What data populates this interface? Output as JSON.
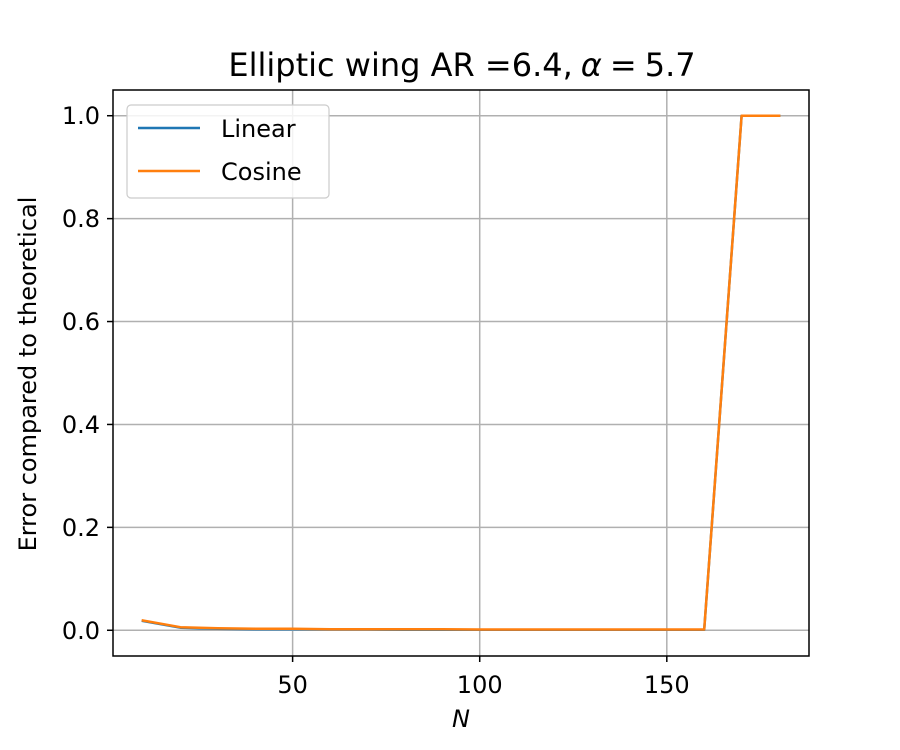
{
  "chart_data": {
    "type": "line",
    "title": "Elliptic wing AR =6.4, α = 5.7",
    "title_parts": {
      "prefix": "Elliptic wing AR =6.4,",
      "alpha": "α",
      "eq": "=",
      "alpha_value": "5.7"
    },
    "xlabel": "N",
    "ylabel": "Error compared to theoretical",
    "xlim": [
      2,
      188
    ],
    "ylim": [
      -0.05,
      1.05
    ],
    "xticks": [
      50,
      100,
      150
    ],
    "xtick_labels": [
      "50",
      "100",
      "150"
    ],
    "yticks": [
      0.0,
      0.2,
      0.4,
      0.6,
      0.8,
      1.0
    ],
    "ytick_labels": [
      "0.0",
      "0.2",
      "0.4",
      "0.6",
      "0.8",
      "1.0"
    ],
    "grid": true,
    "legend_position": "top-left",
    "x": [
      10,
      20,
      30,
      40,
      50,
      60,
      70,
      80,
      90,
      100,
      110,
      120,
      130,
      140,
      150,
      160,
      170,
      180
    ],
    "series": [
      {
        "name": "Linear",
        "color": "#1f77b4",
        "values": [
          0.018,
          0.005,
          0.003,
          0.002,
          0.002,
          0.0015,
          0.0015,
          0.0012,
          0.0012,
          0.001,
          0.001,
          0.001,
          0.001,
          0.001,
          0.001,
          0.001,
          1.0,
          1.0
        ]
      },
      {
        "name": "Cosine",
        "color": "#ff7f0e",
        "values": [
          0.019,
          0.006,
          0.004,
          0.003,
          0.003,
          0.002,
          0.002,
          0.002,
          0.002,
          0.0015,
          0.0015,
          0.0015,
          0.0015,
          0.0015,
          0.0015,
          0.0015,
          1.0,
          1.0
        ]
      }
    ]
  }
}
